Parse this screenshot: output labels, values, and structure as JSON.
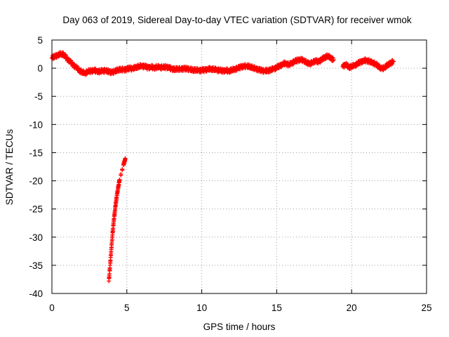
{
  "chart_data": {
    "type": "scatter",
    "title": "Day 063 of 2019, Sidereal Day-to-day VTEC variation (SDTVAR) for receiver wmok",
    "xlabel": "GPS time / hours",
    "ylabel": "SDTVAR / TECUs",
    "xlim": [
      0,
      25
    ],
    "ylim": [
      -40,
      5
    ],
    "xticks": [
      0,
      5,
      10,
      15,
      20,
      25
    ],
    "yticks": [
      5,
      0,
      -5,
      -10,
      -15,
      -20,
      -25,
      -30,
      -35,
      -40
    ],
    "grid": true,
    "marker": "+",
    "series": [
      {
        "name": "SDTVAR",
        "color": "#ff0000",
        "main_trace": [
          [
            0.0,
            1.8
          ],
          [
            0.2,
            2.1
          ],
          [
            0.4,
            2.3
          ],
          [
            0.6,
            2.6
          ],
          [
            0.8,
            2.4
          ],
          [
            1.0,
            1.7
          ],
          [
            1.2,
            1.2
          ],
          [
            1.4,
            0.6
          ],
          [
            1.6,
            0.2
          ],
          [
            1.8,
            -0.3
          ],
          [
            2.0,
            -0.7
          ],
          [
            2.2,
            -0.9
          ],
          [
            2.4,
            -0.6
          ],
          [
            2.6,
            -0.5
          ],
          [
            2.8,
            -0.4
          ],
          [
            3.0,
            -0.5
          ],
          [
            3.2,
            -0.6
          ],
          [
            3.4,
            -0.4
          ],
          [
            3.6,
            -0.5
          ],
          [
            3.8,
            -0.6
          ],
          [
            4.0,
            -0.8
          ],
          [
            4.2,
            -0.5
          ],
          [
            4.4,
            -0.3
          ],
          [
            4.6,
            -0.2
          ],
          [
            4.8,
            -0.3
          ],
          [
            5.0,
            -0.2
          ],
          [
            5.2,
            0.0
          ],
          [
            5.4,
            -0.1
          ],
          [
            5.6,
            0.2
          ],
          [
            5.8,
            0.3
          ],
          [
            6.0,
            0.4
          ],
          [
            6.2,
            0.3
          ],
          [
            6.4,
            0.1
          ],
          [
            6.6,
            0.2
          ],
          [
            6.8,
            0.1
          ],
          [
            7.0,
            0.2
          ],
          [
            7.2,
            0.2
          ],
          [
            7.4,
            0.1
          ],
          [
            7.6,
            0.2
          ],
          [
            7.8,
            0.1
          ],
          [
            8.0,
            -0.1
          ],
          [
            8.2,
            -0.2
          ],
          [
            8.4,
            -0.1
          ],
          [
            8.6,
            -0.2
          ],
          [
            8.8,
            -0.1
          ],
          [
            9.0,
            -0.1
          ],
          [
            9.2,
            -0.2
          ],
          [
            9.4,
            -0.3
          ],
          [
            9.6,
            -0.3
          ],
          [
            9.8,
            -0.4
          ],
          [
            10.0,
            -0.4
          ],
          [
            10.2,
            -0.3
          ],
          [
            10.4,
            -0.2
          ],
          [
            10.6,
            -0.1
          ],
          [
            10.8,
            -0.2
          ],
          [
            11.0,
            -0.3
          ],
          [
            11.2,
            -0.4
          ],
          [
            11.4,
            -0.5
          ],
          [
            11.6,
            -0.4
          ],
          [
            11.8,
            -0.5
          ],
          [
            12.0,
            -0.3
          ],
          [
            12.2,
            -0.2
          ],
          [
            12.4,
            0.0
          ],
          [
            12.6,
            0.2
          ],
          [
            12.8,
            0.3
          ],
          [
            13.0,
            0.4
          ],
          [
            13.2,
            0.3
          ],
          [
            13.4,
            0.1
          ],
          [
            13.6,
            -0.1
          ],
          [
            13.8,
            -0.3
          ],
          [
            14.0,
            -0.4
          ],
          [
            14.2,
            -0.5
          ],
          [
            14.4,
            -0.4
          ],
          [
            14.6,
            -0.3
          ],
          [
            14.8,
            -0.1
          ],
          [
            15.0,
            0.1
          ],
          [
            15.2,
            0.4
          ],
          [
            15.4,
            0.7
          ],
          [
            15.6,
            0.9
          ],
          [
            15.8,
            0.6
          ],
          [
            16.0,
            0.9
          ],
          [
            16.2,
            1.2
          ],
          [
            16.4,
            1.4
          ],
          [
            16.6,
            1.5
          ],
          [
            16.8,
            1.4
          ],
          [
            17.0,
            1.0
          ],
          [
            17.2,
            0.8
          ],
          [
            17.4,
            1.0
          ],
          [
            17.6,
            1.3
          ],
          [
            17.8,
            1.1
          ],
          [
            18.0,
            1.6
          ],
          [
            18.2,
            1.9
          ],
          [
            18.4,
            2.2
          ],
          [
            18.6,
            1.8
          ],
          [
            18.8,
            1.5
          ],
          [
            19.4,
            0.3
          ],
          [
            19.6,
            0.7
          ],
          [
            19.8,
            0.2
          ],
          [
            20.0,
            0.3
          ],
          [
            20.2,
            0.5
          ],
          [
            20.4,
            0.8
          ],
          [
            20.6,
            1.1
          ],
          [
            20.8,
            1.3
          ],
          [
            21.0,
            1.4
          ],
          [
            21.2,
            1.2
          ],
          [
            21.4,
            1.0
          ],
          [
            21.6,
            0.7
          ],
          [
            21.8,
            0.3
          ],
          [
            22.0,
            -0.1
          ],
          [
            22.2,
            0.1
          ],
          [
            22.4,
            0.6
          ],
          [
            22.6,
            0.9
          ],
          [
            22.8,
            1.2
          ]
        ],
        "dip_segment": [
          [
            3.8,
            -37.8
          ],
          [
            3.84,
            -36.5
          ],
          [
            3.88,
            -35.0
          ],
          [
            3.92,
            -33.6
          ],
          [
            3.96,
            -32.2
          ],
          [
            4.0,
            -30.9
          ],
          [
            4.04,
            -29.6
          ],
          [
            4.08,
            -28.4
          ],
          [
            4.12,
            -27.3
          ],
          [
            4.16,
            -26.3
          ],
          [
            4.2,
            -25.4
          ],
          [
            4.24,
            -24.5
          ],
          [
            4.28,
            -23.7
          ],
          [
            4.32,
            -22.9
          ],
          [
            4.36,
            -22.2
          ],
          [
            4.4,
            -21.5
          ],
          [
            4.44,
            -20.9
          ],
          [
            4.48,
            -20.3
          ],
          [
            4.52,
            -19.8
          ],
          [
            4.78,
            -17.2
          ],
          [
            4.82,
            -16.8
          ],
          [
            4.86,
            -16.4
          ],
          [
            4.9,
            -16.0
          ]
        ]
      }
    ]
  }
}
